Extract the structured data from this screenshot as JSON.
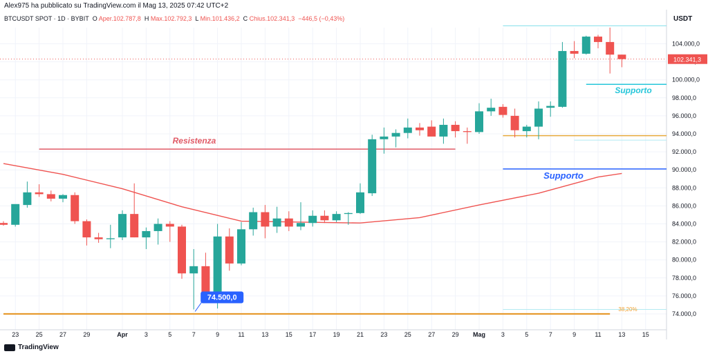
{
  "header": {
    "published": "Alex975 ha pubblicato su TradingView.com il Mag 13, 2025 07:42 UTC+2",
    "symbol": "BTCUSDT SPOT · 1D · BYBIT",
    "open_label": "O",
    "open": "Aper.102.787,8",
    "high_label": "H",
    "high": "Max.102.792,3",
    "low_label": "L",
    "low": "Min.101.436,2",
    "close_label": "C",
    "close": "Chius.102.341,3",
    "change": "−446,5 (−0,43%)"
  },
  "price_unit": "USDT",
  "last_price_tag": "102.341,3",
  "footer": {
    "brand": "TradingView"
  },
  "colors": {
    "up": "#26a69a",
    "down": "#ef5350",
    "ma": "#ef5350",
    "resistance": "#e05a66",
    "support_cyan": "#26c6da",
    "support_blue": "#2962ff",
    "fib": "#f0a030"
  },
  "chart_data": {
    "type": "candlestick",
    "title": "BTCUSDT SPOT · 1D · BYBIT",
    "y_ticks": [
      "74.000,0",
      "76.000,0",
      "78.000,0",
      "80.000,0",
      "82.000,0",
      "84.000,0",
      "86.000,0",
      "88.000,0",
      "90.000,0",
      "92.000,0",
      "94.000,0",
      "96.000,0",
      "98.000,0",
      "100.000,0",
      "102.000,0",
      "104.000,0"
    ],
    "y_range": [
      72600,
      107000
    ],
    "x_ticks": [
      {
        "label": "23",
        "i": 1
      },
      {
        "label": "25",
        "i": 3
      },
      {
        "label": "27",
        "i": 5
      },
      {
        "label": "29",
        "i": 7
      },
      {
        "label": "Apr",
        "i": 10
      },
      {
        "label": "3",
        "i": 12
      },
      {
        "label": "5",
        "i": 14
      },
      {
        "label": "7",
        "i": 16
      },
      {
        "label": "9",
        "i": 18
      },
      {
        "label": "11",
        "i": 20
      },
      {
        "label": "13",
        "i": 22
      },
      {
        "label": "15",
        "i": 24
      },
      {
        "label": "17",
        "i": 26
      },
      {
        "label": "19",
        "i": 28
      },
      {
        "label": "21",
        "i": 30
      },
      {
        "label": "23",
        "i": 32
      },
      {
        "label": "25",
        "i": 34
      },
      {
        "label": "27",
        "i": 36
      },
      {
        "label": "29",
        "i": 38
      },
      {
        "label": "Mag",
        "i": 40
      },
      {
        "label": "3",
        "i": 42
      },
      {
        "label": "5",
        "i": 44
      },
      {
        "label": "7",
        "i": 46
      },
      {
        "label": "9",
        "i": 48
      },
      {
        "label": "11",
        "i": 50
      },
      {
        "label": "13",
        "i": 52
      },
      {
        "label": "15",
        "i": 54
      }
    ],
    "candles": [
      {
        "o": 84100,
        "h": 84300,
        "l": 83800,
        "c": 83900
      },
      {
        "o": 83900,
        "h": 86000,
        "l": 83700,
        "c": 86200
      },
      {
        "o": 86100,
        "h": 88700,
        "l": 85800,
        "c": 87500
      },
      {
        "o": 87500,
        "h": 88400,
        "l": 87000,
        "c": 87300
      },
      {
        "o": 87300,
        "h": 87700,
        "l": 86500,
        "c": 86800
      },
      {
        "o": 86800,
        "h": 87300,
        "l": 86400,
        "c": 87200
      },
      {
        "o": 87200,
        "h": 87500,
        "l": 84000,
        "c": 84300
      },
      {
        "o": 84300,
        "h": 84500,
        "l": 81600,
        "c": 82500
      },
      {
        "o": 82500,
        "h": 83000,
        "l": 81900,
        "c": 82300
      },
      {
        "o": 82300,
        "h": 83900,
        "l": 81300,
        "c": 82400
      },
      {
        "o": 82500,
        "h": 85500,
        "l": 82200,
        "c": 85100
      },
      {
        "o": 85100,
        "h": 88500,
        "l": 82500,
        "c": 82500
      },
      {
        "o": 82500,
        "h": 83600,
        "l": 81200,
        "c": 83200
      },
      {
        "o": 83200,
        "h": 84600,
        "l": 81700,
        "c": 84000
      },
      {
        "o": 84000,
        "h": 84300,
        "l": 82000,
        "c": 83700
      },
      {
        "o": 83700,
        "h": 83900,
        "l": 77900,
        "c": 78500
      },
      {
        "o": 78500,
        "h": 81200,
        "l": 74500,
        "c": 79300
      },
      {
        "o": 79300,
        "h": 80800,
        "l": 76200,
        "c": 76300
      },
      {
        "o": 76300,
        "h": 84000,
        "l": 74600,
        "c": 82600
      },
      {
        "o": 82600,
        "h": 83500,
        "l": 78800,
        "c": 79600
      },
      {
        "o": 79600,
        "h": 84200,
        "l": 79400,
        "c": 83400
      },
      {
        "o": 83400,
        "h": 85800,
        "l": 82700,
        "c": 85300
      },
      {
        "o": 85300,
        "h": 86100,
        "l": 82400,
        "c": 83700
      },
      {
        "o": 83700,
        "h": 85900,
        "l": 83000,
        "c": 84600
      },
      {
        "o": 84600,
        "h": 85400,
        "l": 83200,
        "c": 83700
      },
      {
        "o": 83700,
        "h": 86400,
        "l": 83300,
        "c": 84100
      },
      {
        "o": 84100,
        "h": 85500,
        "l": 83700,
        "c": 84900
      },
      {
        "o": 84900,
        "h": 85500,
        "l": 84100,
        "c": 84400
      },
      {
        "o": 84400,
        "h": 85400,
        "l": 84200,
        "c": 85100
      },
      {
        "o": 85100,
        "h": 85300,
        "l": 83900,
        "c": 85200
      },
      {
        "o": 85200,
        "h": 88500,
        "l": 85100,
        "c": 87500
      },
      {
        "o": 87400,
        "h": 93900,
        "l": 87100,
        "c": 93400
      },
      {
        "o": 93400,
        "h": 94700,
        "l": 91800,
        "c": 93700
      },
      {
        "o": 93700,
        "h": 94500,
        "l": 92500,
        "c": 94100
      },
      {
        "o": 94100,
        "h": 95700,
        "l": 93500,
        "c": 94700
      },
      {
        "o": 94700,
        "h": 95200,
        "l": 93800,
        "c": 94400
      },
      {
        "o": 94800,
        "h": 95500,
        "l": 93800,
        "c": 93700
      },
      {
        "o": 93700,
        "h": 95700,
        "l": 92900,
        "c": 95000
      },
      {
        "o": 95000,
        "h": 95400,
        "l": 93600,
        "c": 94300
      },
      {
        "o": 94300,
        "h": 94700,
        "l": 92900,
        "c": 94200
      },
      {
        "o": 94200,
        "h": 97400,
        "l": 94000,
        "c": 96500
      },
      {
        "o": 96500,
        "h": 97900,
        "l": 96000,
        "c": 96900
      },
      {
        "o": 97000,
        "h": 97300,
        "l": 95800,
        "c": 96100
      },
      {
        "o": 96000,
        "h": 96800,
        "l": 93600,
        "c": 94400
      },
      {
        "o": 94300,
        "h": 95000,
        "l": 93600,
        "c": 94800
      },
      {
        "o": 94800,
        "h": 97600,
        "l": 93400,
        "c": 96800
      },
      {
        "o": 96900,
        "h": 97600,
        "l": 95900,
        "c": 97100
      },
      {
        "o": 97000,
        "h": 104200,
        "l": 96900,
        "c": 103200
      },
      {
        "o": 103200,
        "h": 104300,
        "l": 102400,
        "c": 102900
      },
      {
        "o": 102900,
        "h": 104900,
        "l": 102800,
        "c": 104800
      },
      {
        "o": 104800,
        "h": 105000,
        "l": 103500,
        "c": 104200
      },
      {
        "o": 104200,
        "h": 105800,
        "l": 100700,
        "c": 102800
      },
      {
        "o": 102800,
        "h": 102800,
        "l": 101400,
        "c": 102300
      }
    ],
    "moving_average": {
      "x": [
        0,
        5,
        10,
        15,
        20,
        25,
        30,
        35,
        40,
        45,
        50,
        52
      ],
      "y": [
        90700,
        89500,
        87900,
        85900,
        84300,
        84200,
        84100,
        84700,
        86100,
        87400,
        89200,
        89600
      ]
    },
    "levels": [
      {
        "name": "resistance",
        "label": "Resistenza",
        "value": 92300,
        "x0": 3,
        "x1": 38
      },
      {
        "name": "support-upper",
        "label": "Supporto",
        "value": 99500,
        "x0": 49,
        "x1": 56
      },
      {
        "name": "support-lower",
        "label": "Supporto",
        "value": 90100,
        "x0": 42,
        "x1": 56
      },
      {
        "name": "orange-level",
        "label": "",
        "value": 93800,
        "x0": 42,
        "x1": 56
      },
      {
        "name": "bottom-level",
        "label": "",
        "value": 74000,
        "x0": 0,
        "x1": 51
      },
      {
        "name": "fib-level",
        "label": "38,20%",
        "value": 74500,
        "x0": 42,
        "x1": 56
      },
      {
        "name": "top-cyan",
        "label": "",
        "value": 106000,
        "x0": 42,
        "x1": 56
      },
      {
        "name": "cyan-mid",
        "label": "",
        "value": 93300,
        "x0": 48,
        "x1": 56
      }
    ],
    "callout": {
      "label": "74.500,0",
      "value": 74500
    }
  }
}
